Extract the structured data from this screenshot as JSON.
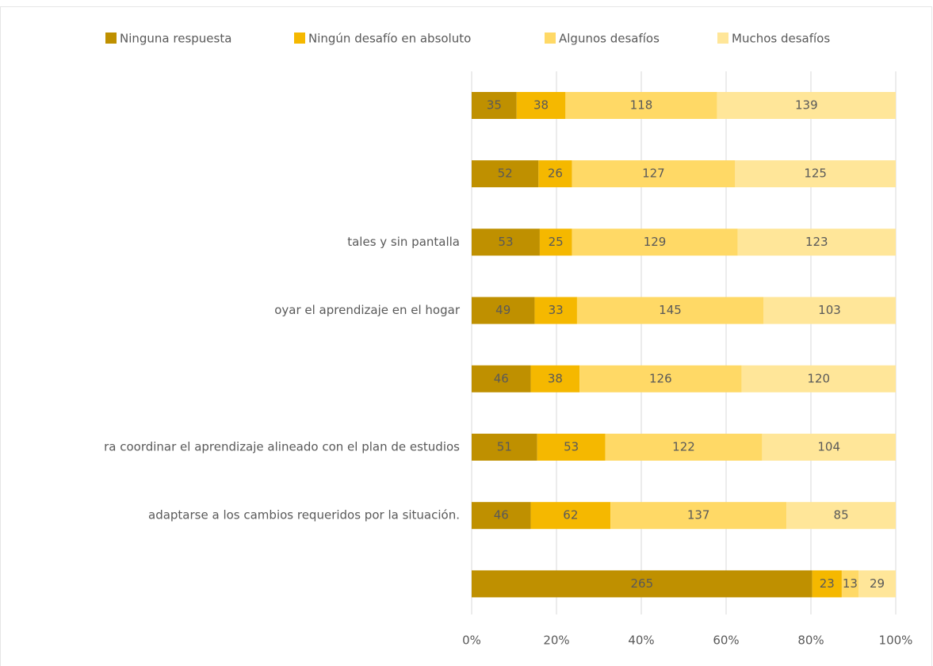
{
  "chart_data": {
    "type": "bar",
    "orientation": "horizontal",
    "stacked": "percent",
    "categories": [
      null,
      null,
      "tales y sin pantalla",
      "oyar el aprendizaje en el hogar",
      null,
      "ra coordinar el aprendizaje alineado con el plan de estudios",
      "adaptarse a los cambios requeridos por la situación.",
      null
    ],
    "series": [
      {
        "name": "Ninguna respuesta",
        "color": "#bf9000",
        "values": [
          35,
          52,
          53,
          49,
          46,
          51,
          46,
          265
        ]
      },
      {
        "name": "Ningún desafío en absoluto",
        "color": "#f5b800",
        "values": [
          38,
          26,
          25,
          33,
          38,
          53,
          62,
          23
        ]
      },
      {
        "name": "Algunos desafíos",
        "color": "#ffd966",
        "values": [
          118,
          127,
          129,
          145,
          126,
          122,
          137,
          13
        ]
      },
      {
        "name": "Muchos desafíos",
        "color": "#ffe699",
        "values": [
          139,
          125,
          123,
          103,
          120,
          104,
          85,
          29
        ]
      }
    ],
    "xlim": [
      0,
      100
    ],
    "xticks": [
      {
        "value": 0,
        "label": "0%"
      },
      {
        "value": 20,
        "label": "20%"
      },
      {
        "value": 40,
        "label": "40%"
      },
      {
        "value": 60,
        "label": "60%"
      },
      {
        "value": 80,
        "label": "80%"
      },
      {
        "value": 100,
        "label": "100%"
      }
    ],
    "grid": true,
    "legend": "top"
  }
}
